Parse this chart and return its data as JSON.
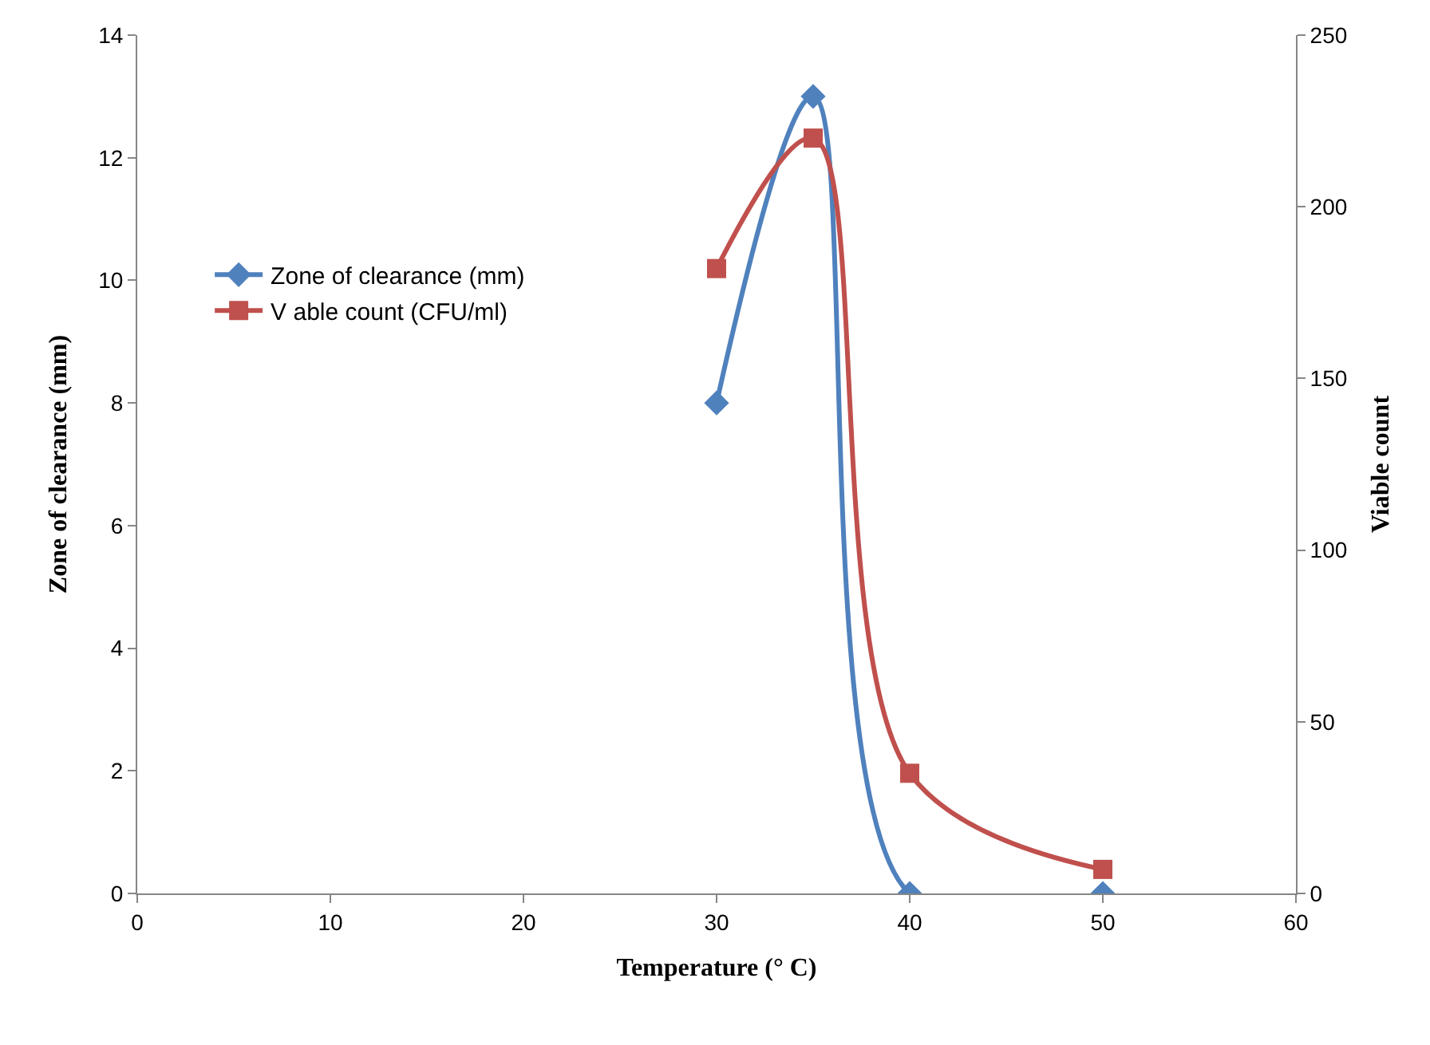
{
  "chart_data": {
    "type": "line",
    "xlabel": "Temperature (° C)",
    "ylabel": "Zone of clearance (mm)",
    "y2label": "Viable count",
    "x": [
      30,
      35,
      40,
      50
    ],
    "series": [
      {
        "name": "Zone of clearance (mm)",
        "color": "#4f81bd",
        "marker": "diamond",
        "values": [
          8,
          13,
          0,
          0
        ]
      },
      {
        "name": "V able count (CFU/ml)",
        "color": "#c0504d",
        "marker": "square",
        "axis": "y2",
        "values": [
          182,
          220,
          35,
          7
        ]
      }
    ],
    "xlim": [
      0,
      60
    ],
    "xticks": [
      0,
      10,
      20,
      30,
      40,
      50,
      60
    ],
    "ylim": [
      0,
      14
    ],
    "yticks": [
      0,
      2,
      4,
      6,
      8,
      10,
      12,
      14
    ],
    "y2lim": [
      0,
      250
    ],
    "y2ticks": [
      0,
      50,
      100,
      150,
      200,
      250
    ],
    "legend": "left",
    "line_style": "solid"
  }
}
